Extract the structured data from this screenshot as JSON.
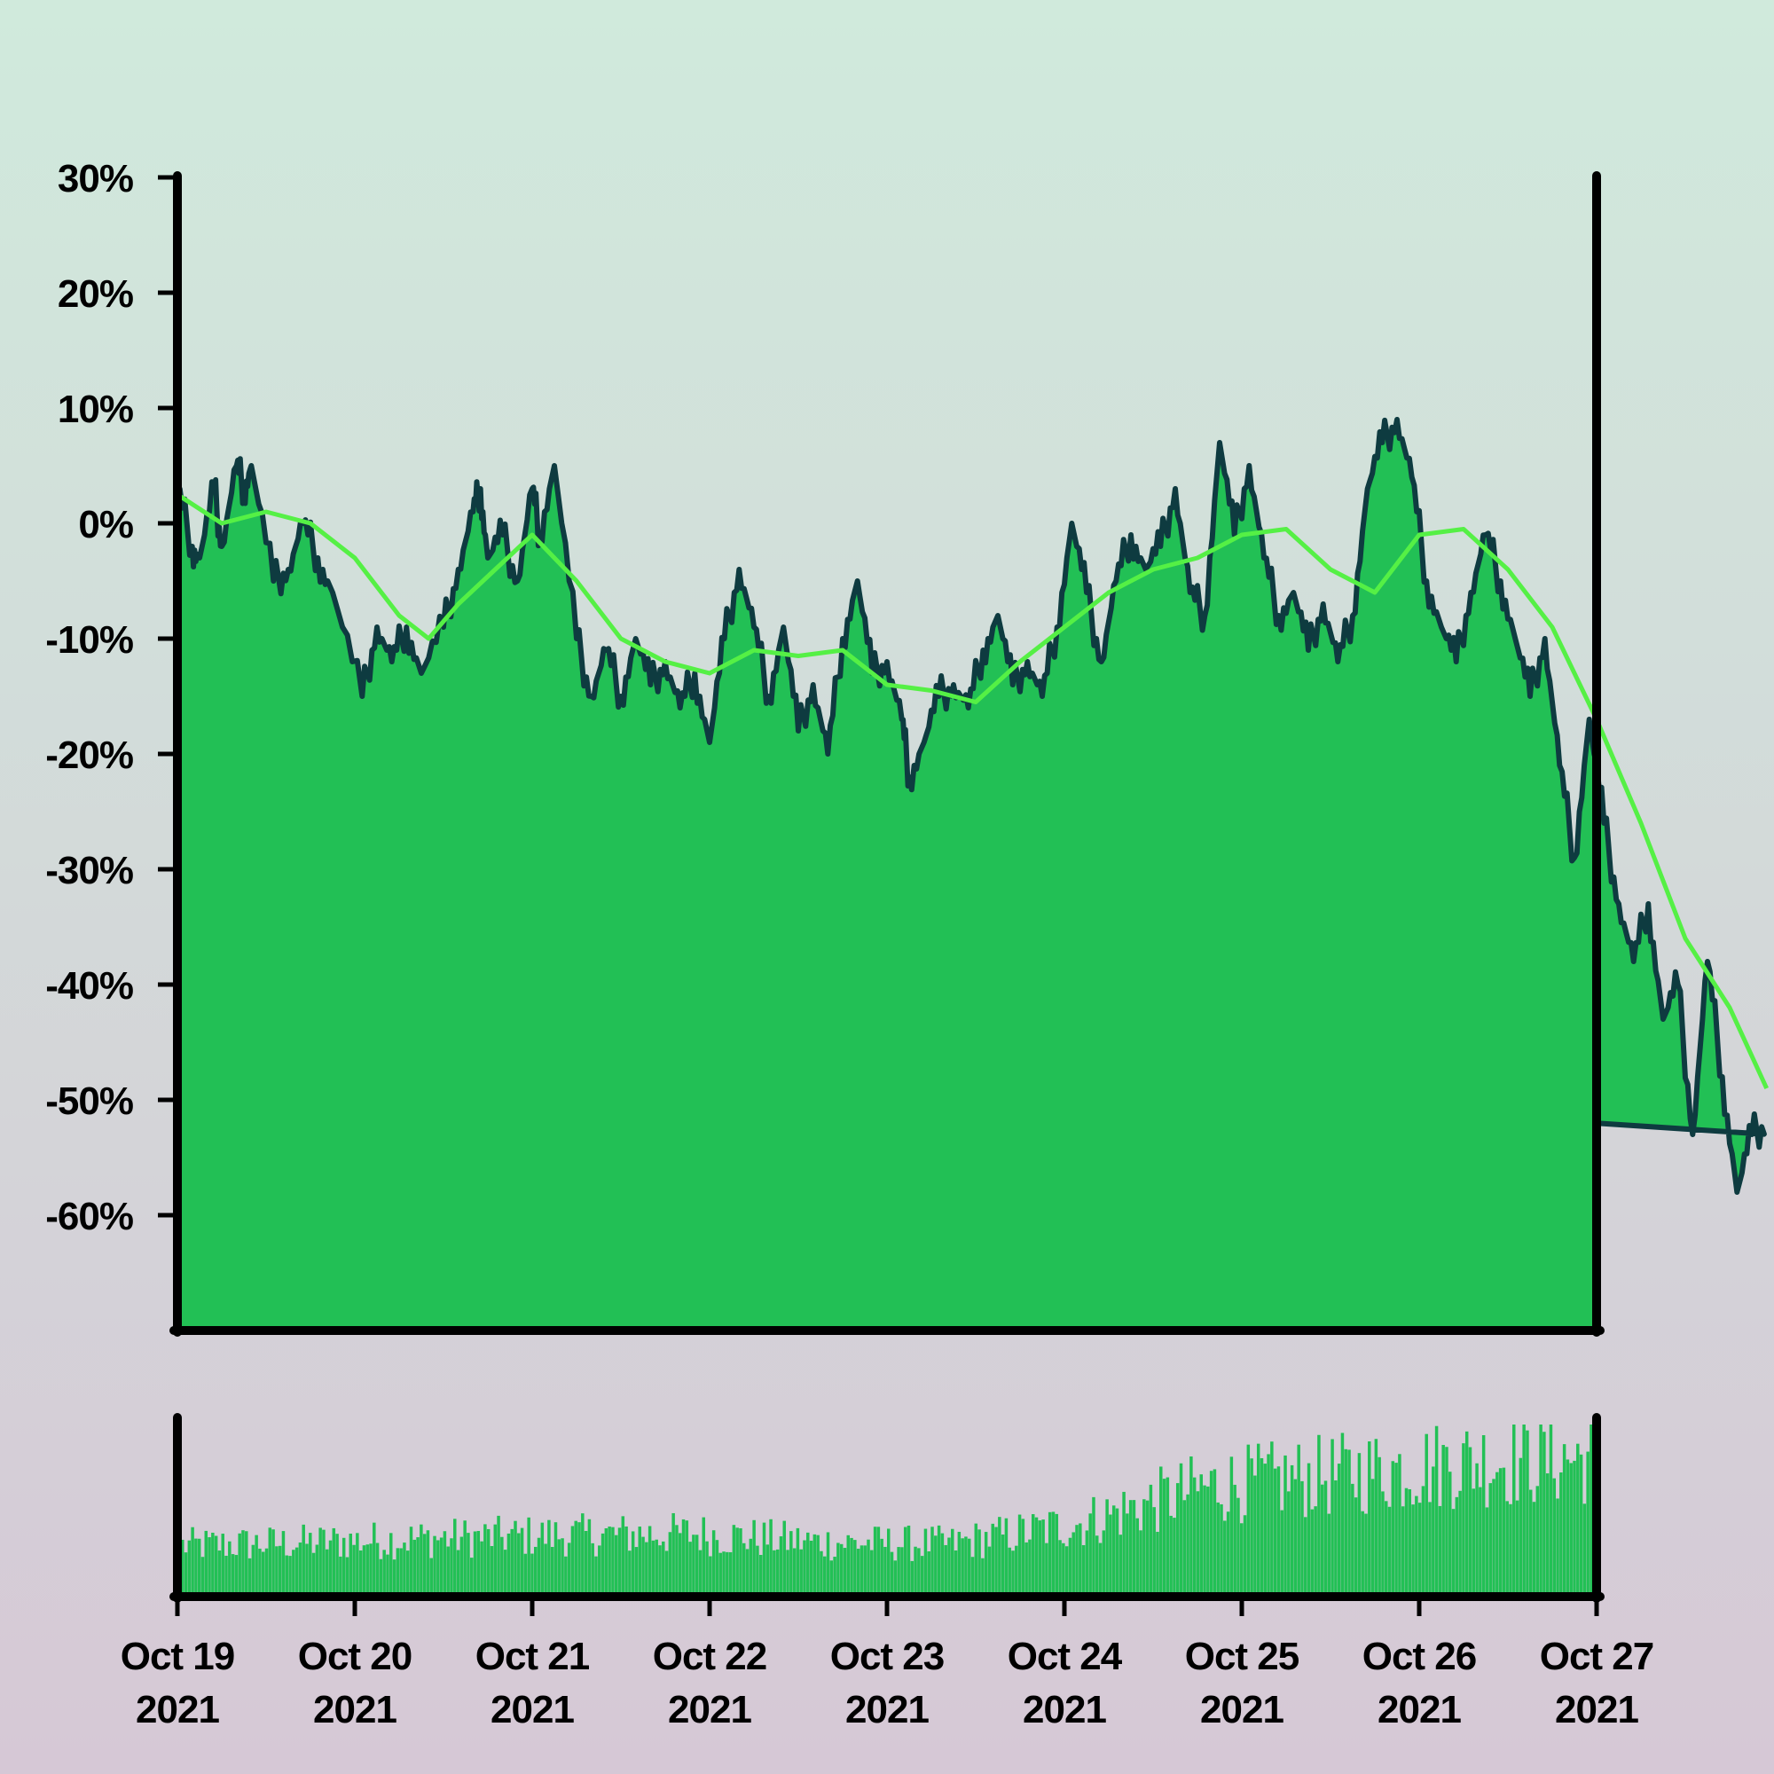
{
  "colors": {
    "background_top": "#d0eadc",
    "background_bottom": "#d6c8d6",
    "area_fill": "#22c055",
    "price_line": "#0e3b40",
    "moving_average": "#55f045",
    "volume_bars": "#22c055",
    "axes": "#000000"
  },
  "chart_data": [
    {
      "type": "area",
      "role": "price-change",
      "y_tick_labels": [
        "30%",
        "20%",
        "10%",
        "0%",
        "-10%",
        "-20%",
        "-30%",
        "-40%",
        "-50%",
        "-60%"
      ],
      "y_tick_values": [
        30,
        20,
        10,
        0,
        -10,
        -20,
        -30,
        -40,
        -50,
        -60
      ],
      "ylim": [
        -70,
        30
      ],
      "xlim": [
        "2021-10-19",
        "2021-10-27"
      ],
      "y_unit": "%",
      "grid": false,
      "series": [
        {
          "style": "area with dark outline",
          "points": [
            [
              "2021-10-19 00:00",
              3
            ],
            [
              "2021-10-19 02:00",
              -2
            ],
            [
              "2021-10-19 03:00",
              -3
            ],
            [
              "2021-10-19 05:00",
              3
            ],
            [
              "2021-10-19 06:00",
              -2
            ],
            [
              "2021-10-19 08:00",
              5
            ],
            [
              "2021-10-19 09:00",
              3
            ],
            [
              "2021-10-19 10:00",
              5
            ],
            [
              "2021-10-19 13:00",
              -5
            ],
            [
              "2021-10-19 15:00",
              -4
            ],
            [
              "2021-10-19 17:00",
              0
            ],
            [
              "2021-10-19 19:00",
              -3
            ],
            [
              "2021-10-19 21:00",
              -6
            ],
            [
              "2021-10-20 01:00",
              -15
            ],
            [
              "2021-10-20 03:00",
              -9
            ],
            [
              "2021-10-20 05:00",
              -12
            ],
            [
              "2021-10-20 07:00",
              -9
            ],
            [
              "2021-10-20 09:00",
              -13
            ],
            [
              "2021-10-20 12:00",
              -9
            ],
            [
              "2021-10-20 14:00",
              -4
            ],
            [
              "2021-10-20 16:00",
              1
            ],
            [
              "2021-10-20 17:00",
              3
            ],
            [
              "2021-10-20 18:00",
              -3
            ],
            [
              "2021-10-20 20:00",
              -1
            ],
            [
              "2021-10-20 22:00",
              -5
            ],
            [
              "2021-10-21 00:00",
              3
            ],
            [
              "2021-10-21 01:00",
              -1
            ],
            [
              "2021-10-21 03:00",
              5
            ],
            [
              "2021-10-21 06:00",
              -10
            ],
            [
              "2021-10-21 08:00",
              -15
            ],
            [
              "2021-10-21 10:00",
              -11
            ],
            [
              "2021-10-21 12:00",
              -15
            ],
            [
              "2021-10-21 14:00",
              -10
            ],
            [
              "2021-10-21 16:00",
              -14
            ],
            [
              "2021-10-21 18:00",
              -12
            ],
            [
              "2021-10-21 20:00",
              -16
            ],
            [
              "2021-10-21 22:00",
              -13
            ],
            [
              "2021-10-22 00:00",
              -19
            ],
            [
              "2021-10-22 02:00",
              -10
            ],
            [
              "2021-10-22 04:00",
              -4
            ],
            [
              "2021-10-22 06:00",
              -9
            ],
            [
              "2021-10-22 08:00",
              -15
            ],
            [
              "2021-10-22 10:00",
              -9
            ],
            [
              "2021-10-22 12:00",
              -18
            ],
            [
              "2021-10-22 14:00",
              -14
            ],
            [
              "2021-10-22 16:00",
              -20
            ],
            [
              "2021-10-22 18:00",
              -10
            ],
            [
              "2021-10-22 20:00",
              -5
            ],
            [
              "2021-10-22 22:00",
              -13
            ],
            [
              "2021-10-23 00:00",
              -12
            ],
            [
              "2021-10-23 02:00",
              -17
            ],
            [
              "2021-10-23 03:00",
              -22
            ],
            [
              "2021-10-23 05:00",
              -19
            ],
            [
              "2021-10-23 07:00",
              -15
            ],
            [
              "2021-10-23 09:00",
              -14
            ],
            [
              "2021-10-23 11:00",
              -16
            ],
            [
              "2021-10-23 13:00",
              -11
            ],
            [
              "2021-10-23 15:00",
              -8
            ],
            [
              "2021-10-23 17:00",
              -14
            ],
            [
              "2021-10-23 19:00",
              -12
            ],
            [
              "2021-10-23 21:00",
              -15
            ],
            [
              "2021-10-23 23:00",
              -9
            ],
            [
              "2021-10-24 01:00",
              0
            ],
            [
              "2021-10-24 03:00",
              -6
            ],
            [
              "2021-10-24 05:00",
              -12
            ],
            [
              "2021-10-24 07:00",
              -5
            ],
            [
              "2021-10-24 09:00",
              -1
            ],
            [
              "2021-10-24 11:00",
              -4
            ],
            [
              "2021-10-24 13:00",
              -2
            ],
            [
              "2021-10-24 15:00",
              3
            ],
            [
              "2021-10-24 17:00",
              -6
            ],
            [
              "2021-10-24 19:00",
              -8
            ],
            [
              "2021-10-24 21:00",
              7
            ],
            [
              "2021-10-24 23:00",
              -1
            ],
            [
              "2021-10-25 01:00",
              5
            ],
            [
              "2021-10-25 03:00",
              -3
            ],
            [
              "2021-10-25 05:00",
              -8
            ],
            [
              "2021-10-25 07:00",
              -6
            ],
            [
              "2021-10-25 09:00",
              -11
            ],
            [
              "2021-10-25 11:00",
              -7
            ],
            [
              "2021-10-25 13:00",
              -12
            ],
            [
              "2021-10-25 15:00",
              -8
            ],
            [
              "2021-10-25 17:00",
              3
            ],
            [
              "2021-10-25 19:00",
              7
            ],
            [
              "2021-10-25 21:00",
              9
            ],
            [
              "2021-10-25 23:00",
              4
            ],
            [
              "2021-10-26 01:00",
              -5
            ],
            [
              "2021-10-26 03:00",
              -9
            ],
            [
              "2021-10-26 05:00",
              -12
            ],
            [
              "2021-10-26 07:00",
              -6
            ],
            [
              "2021-10-26 09:00",
              -1
            ],
            [
              "2021-10-26 11:00",
              -5
            ],
            [
              "2021-10-26 13:00",
              -10
            ],
            [
              "2021-10-26 15:00",
              -15
            ],
            [
              "2021-10-26 17:00",
              -10
            ],
            [
              "2021-10-26 19:00",
              -21
            ],
            [
              "2021-10-26 21:00",
              -29
            ],
            [
              "2021-10-26 23:00",
              -17
            ],
            [
              "2021-10-27 01:00",
              -26
            ],
            [
              "2021-10-27 03:00",
              -33
            ],
            [
              "2021-10-27 05:00",
              -38
            ],
            [
              "2021-10-27 07:00",
              -33
            ],
            [
              "2021-10-27 09:00",
              -43
            ],
            [
              "2021-10-27 11:00",
              -40
            ],
            [
              "2021-10-27 13:00",
              -53
            ],
            [
              "2021-10-27 15:00",
              -38
            ],
            [
              "2021-10-27 17:00",
              -48
            ],
            [
              "2021-10-27 19:00",
              -58
            ],
            [
              "2021-10-27 21:00",
              -53
            ],
            [
              "2021-10-27 23:00",
              -52
            ]
          ]
        },
        {
          "style": "moving average line",
          "points": [
            [
              "2021-10-19 00:00",
              2.5
            ],
            [
              "2021-10-19 06:00",
              0
            ],
            [
              "2021-10-19 12:00",
              1
            ],
            [
              "2021-10-19 18:00",
              0
            ],
            [
              "2021-10-20 00:00",
              -3
            ],
            [
              "2021-10-20 06:00",
              -8
            ],
            [
              "2021-10-20 10:00",
              -10
            ],
            [
              "2021-10-20 14:00",
              -7
            ],
            [
              "2021-10-20 19:00",
              -4
            ],
            [
              "2021-10-21 00:00",
              -1
            ],
            [
              "2021-10-21 06:00",
              -5
            ],
            [
              "2021-10-21 12:00",
              -10
            ],
            [
              "2021-10-21 18:00",
              -12
            ],
            [
              "2021-10-22 00:00",
              -13
            ],
            [
              "2021-10-22 06:00",
              -11
            ],
            [
              "2021-10-22 12:00",
              -11.5
            ],
            [
              "2021-10-22 18:00",
              -11
            ],
            [
              "2021-10-23 00:00",
              -14
            ],
            [
              "2021-10-23 06:00",
              -14.5
            ],
            [
              "2021-10-23 12:00",
              -15.5
            ],
            [
              "2021-10-23 18:00",
              -12
            ],
            [
              "2021-10-24 00:00",
              -9
            ],
            [
              "2021-10-24 06:00",
              -6
            ],
            [
              "2021-10-24 12:00",
              -4
            ],
            [
              "2021-10-24 18:00",
              -3
            ],
            [
              "2021-10-25 00:00",
              -1
            ],
            [
              "2021-10-25 06:00",
              -0.5
            ],
            [
              "2021-10-25 12:00",
              -4
            ],
            [
              "2021-10-25 18:00",
              -6
            ],
            [
              "2021-10-26 00:00",
              -1
            ],
            [
              "2021-10-26 06:00",
              -0.5
            ],
            [
              "2021-10-26 12:00",
              -4
            ],
            [
              "2021-10-26 18:00",
              -9
            ],
            [
              "2021-10-27 00:00",
              -17
            ],
            [
              "2021-10-27 06:00",
              -26
            ],
            [
              "2021-10-27 12:00",
              -36
            ],
            [
              "2021-10-27 18:00",
              -42
            ],
            [
              "2021-10-27 23:00",
              -49
            ]
          ]
        }
      ]
    },
    {
      "type": "bar",
      "role": "volume",
      "y_tick_labels": [],
      "grid": false,
      "x_tick_labels": [
        [
          "Oct 19",
          "2021"
        ],
        [
          "Oct 20",
          "2021"
        ],
        [
          "Oct 21",
          "2021"
        ],
        [
          "Oct 22",
          "2021"
        ],
        [
          "Oct 23",
          "2021"
        ],
        [
          "Oct 24",
          "2021"
        ],
        [
          "Oct 25",
          "2021"
        ],
        [
          "Oct 26",
          "2021"
        ],
        [
          "Oct 27",
          "2021"
        ]
      ],
      "x_tick_values": [
        "2021-10-19",
        "2021-10-20",
        "2021-10-21",
        "2021-10-22",
        "2021-10-23",
        "2021-10-24",
        "2021-10-25",
        "2021-10-26",
        "2021-10-27"
      ],
      "relative_volume_levels": [
        0.35,
        0.37,
        0.4,
        0.42,
        0.43,
        0.37,
        0.36,
        0.5,
        0.75,
        0.83,
        0.92,
        0.95
      ]
    }
  ]
}
